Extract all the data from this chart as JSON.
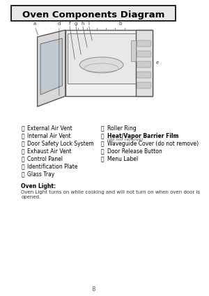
{
  "title": "Oven Components Diagram",
  "bg_color": "#ffffff",
  "title_box_color": "#000000",
  "title_bg": "#e8e8e8",
  "left_labels": [
    [
      "ⓐ",
      "External Air Vent"
    ],
    [
      "ⓑ",
      "Internal Air Vent"
    ],
    [
      "ⓒ",
      "Door Safety Lock System"
    ],
    [
      "ⓓ",
      "Exhaust Air Vent"
    ],
    [
      "ⓔ",
      "Control Panel"
    ],
    [
      "ⓕ",
      "Identification Plate"
    ],
    [
      "ⓖ",
      "Glass Tray"
    ]
  ],
  "right_labels": [
    [
      "ⓗ",
      "Roller Ring"
    ],
    [
      "ⓘ",
      "Heat/Vapor Barrier Film",
      "(do not remove)"
    ],
    [
      "ⓙ",
      "Waveguide Cover (do not remove)"
    ],
    [
      "ⓚ",
      "Door Release Button"
    ],
    [
      "ⓛ",
      "Menu Label"
    ]
  ],
  "oven_light_header": "Oven Light:",
  "oven_light_text": "Oven Light turns on while cooking and will not turn on when oven door is opened.",
  "page_num": "8",
  "text_color": "#333333",
  "label_color": "#000000"
}
